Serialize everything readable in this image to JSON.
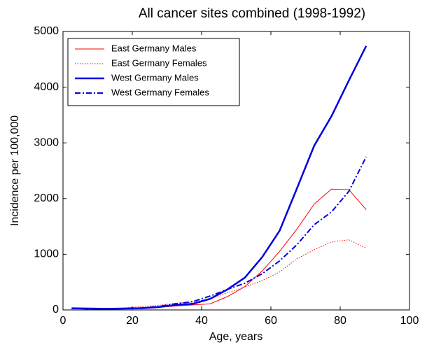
{
  "chart_data": {
    "type": "line",
    "title": "All cancer sites combined (1998-1992)",
    "x_label": "Age, years",
    "y_label": "Incidence per 100,000",
    "x": [
      2.5,
      7.5,
      12.5,
      17.5,
      22.5,
      27.5,
      32.5,
      37.5,
      42.5,
      47.5,
      52.5,
      57.5,
      62.5,
      67.5,
      72.5,
      77.5,
      82.5,
      87.5
    ],
    "series": [
      {
        "name": "East Germany Males",
        "color": "#ff0000",
        "width": 1,
        "dash": "solid",
        "values": [
          20,
          18,
          15,
          20,
          30,
          45,
          70,
          90,
          110,
          240,
          420,
          700,
          1050,
          1450,
          1900,
          2170,
          2160,
          1800
        ]
      },
      {
        "name": "East Germany Females",
        "color": "#ff0000",
        "width": 1,
        "dash": "dotted",
        "values": [
          20,
          18,
          20,
          35,
          60,
          80,
          120,
          140,
          200,
          310,
          410,
          530,
          680,
          920,
          1080,
          1220,
          1260,
          1110
        ]
      },
      {
        "name": "West Germany Males",
        "color": "#0000dd",
        "width": 2.5,
        "dash": "solid",
        "values": [
          30,
          25,
          20,
          25,
          30,
          50,
          90,
          110,
          200,
          370,
          580,
          950,
          1420,
          2180,
          2950,
          3480,
          4120,
          4740
        ]
      },
      {
        "name": "West Germany Females",
        "color": "#0000dd",
        "width": 2,
        "dash": "dashdot",
        "values": [
          25,
          20,
          18,
          25,
          35,
          60,
          110,
          150,
          250,
          370,
          480,
          650,
          880,
          1170,
          1530,
          1760,
          2130,
          2750
        ]
      }
    ],
    "xlim": [
      0,
      100
    ],
    "xticks": [
      0,
      20,
      40,
      60,
      80,
      100
    ],
    "ylim": [
      0,
      5000
    ],
    "yticks": [
      0,
      1000,
      2000,
      3000,
      4000,
      5000
    ],
    "grid": false,
    "legend": "upper left"
  }
}
